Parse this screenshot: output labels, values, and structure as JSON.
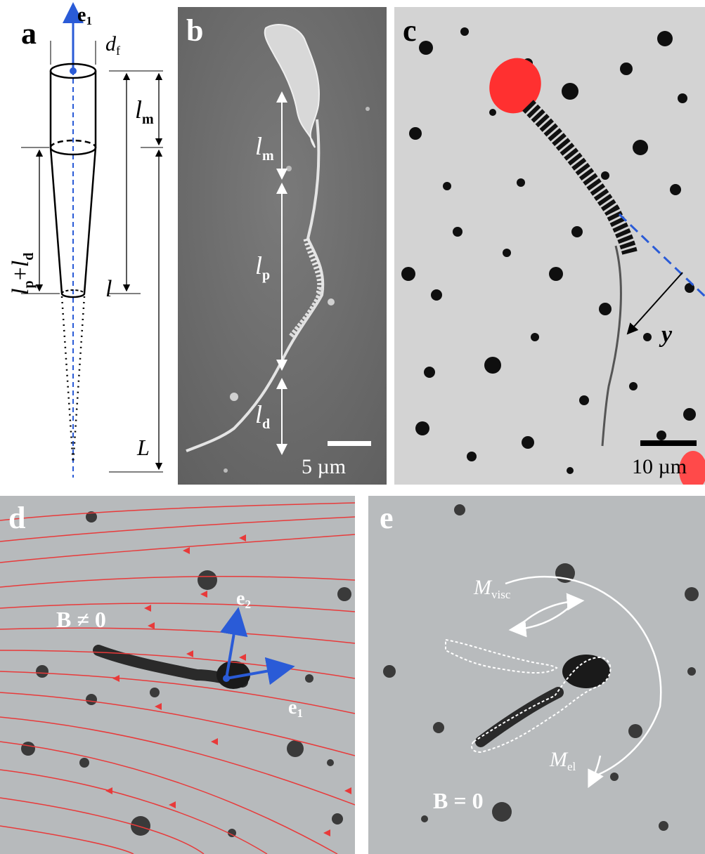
{
  "panels": {
    "a": {
      "label": "a",
      "e1": {
        "main": "e",
        "sub": "1"
      },
      "df": {
        "main": "d",
        "sub": "f"
      },
      "lm": {
        "main": "l",
        "sub": "m"
      },
      "lpld": {
        "main1": "l",
        "sub1": "p",
        "plus": "+",
        "main2": "l",
        "sub2": "d"
      },
      "l": "l",
      "L": "L"
    },
    "b": {
      "label": "b",
      "lm": {
        "main": "l",
        "sub": "m"
      },
      "lp": {
        "main": "l",
        "sub": "p"
      },
      "ld": {
        "main": "l",
        "sub": "d"
      },
      "scale": "5 µm"
    },
    "c": {
      "label": "c",
      "y": "y",
      "scale": "10 µm"
    },
    "d": {
      "label": "d",
      "field": "B ≠ 0",
      "e1": {
        "main": "e",
        "sub": "1"
      },
      "e2": {
        "main": "e",
        "sub": "2"
      }
    },
    "e": {
      "label": "e",
      "field": "B = 0",
      "mvisc": {
        "main": "M",
        "sub": "visc"
      },
      "mel": {
        "main": "M",
        "sub": "el"
      }
    }
  },
  "colors": {
    "arrow_blue": "#2a5bd7",
    "field_red": "#e83a3a",
    "highlight_red": "#ff3030",
    "sem_gray": "#6b6b6b"
  }
}
